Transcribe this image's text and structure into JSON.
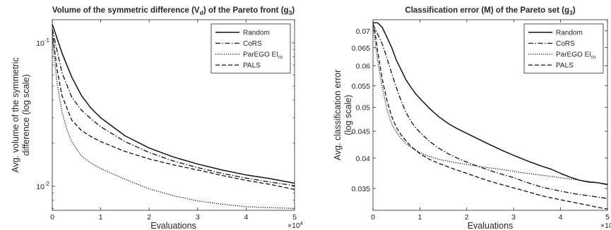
{
  "chart_data": [
    {
      "type": "line",
      "title": {
        "main": "Volume of the symmetric difference (V",
        "sub1": "d",
        "mid": ") of the Pareto front (g",
        "sub2": "3",
        "end": ")"
      },
      "xlabel": "Evaluations",
      "x_multiplier": "×10",
      "x_multiplier_exp": "4",
      "ylabel": [
        "Avg. volume of the symmetric",
        "difference (log scale)"
      ],
      "yscale": "log",
      "xlim": [
        0,
        50000
      ],
      "ylim": [
        0.0068,
        0.145
      ],
      "xticks": [
        0,
        10000,
        20000,
        30000,
        40000,
        50000
      ],
      "xtick_labels": [
        "0",
        "1",
        "2",
        "3",
        "4",
        "5"
      ],
      "yticks": [
        0.01,
        0.1
      ],
      "ytick_labels": [
        {
          "base": "10",
          "exp": "-2"
        },
        {
          "base": "10",
          "exp": "-1"
        }
      ],
      "legend_position": "top-right",
      "series": [
        {
          "name": "Random",
          "style": "solid",
          "x": [
            0,
            2000,
            4000,
            6000,
            8000,
            10000,
            15000,
            20000,
            25000,
            30000,
            35000,
            40000,
            45000,
            50000
          ],
          "y": [
            0.135,
            0.085,
            0.058,
            0.043,
            0.035,
            0.03,
            0.0225,
            0.0185,
            0.016,
            0.0143,
            0.013,
            0.012,
            0.0113,
            0.0105
          ]
        },
        {
          "name": "CoRS",
          "style": "dashdot",
          "x": [
            0,
            2000,
            4000,
            6000,
            8000,
            10000,
            15000,
            20000,
            25000,
            30000,
            35000,
            40000,
            45000,
            50000
          ],
          "y": [
            0.125,
            0.062,
            0.042,
            0.034,
            0.0295,
            0.026,
            0.0205,
            0.0172,
            0.015,
            0.0135,
            0.0123,
            0.0114,
            0.0107,
            0.0101
          ]
        },
        {
          "name": "ParEGO EI",
          "name_sub": "m",
          "style": "dotted",
          "x": [
            0,
            1000,
            2000,
            3000,
            4000,
            6000,
            8000,
            10000,
            15000,
            20000,
            25000,
            30000,
            35000,
            40000,
            45000,
            50000
          ],
          "y": [
            0.11,
            0.052,
            0.033,
            0.025,
            0.0205,
            0.0163,
            0.0145,
            0.0133,
            0.0112,
            0.0096,
            0.0086,
            0.0079,
            0.0075,
            0.0072,
            0.0071,
            0.007
          ]
        },
        {
          "name": "PALS",
          "style": "dashed",
          "x": [
            0,
            1000,
            2000,
            4000,
            6000,
            8000,
            10000,
            15000,
            20000,
            25000,
            30000,
            35000,
            40000,
            45000,
            50000
          ],
          "y": [
            0.12,
            0.065,
            0.043,
            0.029,
            0.0245,
            0.0222,
            0.0205,
            0.0175,
            0.0155,
            0.0141,
            0.013,
            0.0119,
            0.011,
            0.0103,
            0.0095
          ]
        }
      ]
    },
    {
      "type": "line",
      "title": {
        "main": "Classification error (M) of the Pareto set (g",
        "sub1": "3",
        "mid": ")",
        "sub2": "",
        "end": ""
      },
      "xlabel": "Evaluations",
      "x_multiplier": "×10",
      "x_multiplier_exp": "4",
      "ylabel": [
        "Avg. classification error",
        "(log scale)"
      ],
      "yscale": "log",
      "xlim": [
        0,
        50000
      ],
      "ylim": [
        0.0318,
        0.0735
      ],
      "xticks": [
        0,
        10000,
        20000,
        30000,
        40000,
        50000
      ],
      "xtick_labels": [
        "0",
        "1",
        "2",
        "3",
        "4",
        "5"
      ],
      "yticks": [
        0.035,
        0.04,
        0.045,
        0.05,
        0.055,
        0.06,
        0.065,
        0.07
      ],
      "ytick_labels": [
        "0.035",
        "0.04",
        "0.045",
        "0.05",
        "0.055",
        "0.06",
        "0.065",
        "0.07"
      ],
      "legend_position": "top-right",
      "series": [
        {
          "name": "Random",
          "style": "solid",
          "x": [
            0,
            1000,
            2000,
            3000,
            4000,
            5000,
            6000,
            7000,
            8000,
            9000,
            10000,
            12000,
            14000,
            16000,
            18000,
            20000,
            22000,
            25000,
            28000,
            30000,
            33000,
            36000,
            38000,
            40000,
            42000,
            44000,
            46000,
            48000,
            50000
          ],
          "y": [
            0.0725,
            0.0725,
            0.071,
            0.068,
            0.065,
            0.0615,
            0.059,
            0.0565,
            0.0548,
            0.0532,
            0.052,
            0.0498,
            0.048,
            0.0466,
            0.0455,
            0.0446,
            0.0437,
            0.0424,
            0.0412,
            0.0405,
            0.0395,
            0.0386,
            0.0381,
            0.0374,
            0.0368,
            0.0363,
            0.036,
            0.0359,
            0.0356
          ]
        },
        {
          "name": "CoRS",
          "style": "dashdot",
          "x": [
            0,
            1000,
            2000,
            3000,
            4000,
            5000,
            6000,
            7000,
            8000,
            9000,
            10000,
            12000,
            14000,
            16000,
            18000,
            20000,
            23000,
            26000,
            30000,
            33000,
            36000,
            40000,
            43000,
            46000,
            50000
          ],
          "y": [
            0.072,
            0.069,
            0.066,
            0.062,
            0.058,
            0.0545,
            0.0515,
            0.049,
            0.0472,
            0.0458,
            0.0448,
            0.0431,
            0.0418,
            0.0408,
            0.04,
            0.0393,
            0.0384,
            0.0376,
            0.0367,
            0.0359,
            0.0352,
            0.0346,
            0.0342,
            0.0339,
            0.0335
          ]
        },
        {
          "name": "ParEGO EI",
          "name_sub": "m",
          "style": "dotted",
          "x": [
            0,
            500,
            1000,
            2000,
            3000,
            4000,
            5000,
            6000,
            7000,
            8000,
            9000,
            10000,
            12000,
            14000,
            17000,
            20000,
            24000,
            28000,
            32000,
            36000,
            40000,
            45000,
            50000
          ],
          "y": [
            0.072,
            0.0665,
            0.0615,
            0.0545,
            0.0495,
            0.0465,
            0.0448,
            0.0436,
            0.0427,
            0.042,
            0.0415,
            0.041,
            0.0403,
            0.0398,
            0.0393,
            0.0389,
            0.0384,
            0.038,
            0.0375,
            0.0371,
            0.0367,
            0.0362,
            0.0357
          ]
        },
        {
          "name": "PALS",
          "style": "dashed",
          "x": [
            0,
            500,
            1000,
            2000,
            3000,
            4000,
            5000,
            6000,
            7000,
            8000,
            10000,
            12000,
            14000,
            17000,
            20000,
            23000,
            26000,
            30000,
            33000,
            36000,
            40000,
            43000,
            46000,
            48000,
            50000
          ],
          "y": [
            0.0725,
            0.069,
            0.064,
            0.0565,
            0.0515,
            0.048,
            0.0458,
            0.0443,
            0.0432,
            0.0422,
            0.0408,
            0.0398,
            0.0391,
            0.0382,
            0.0374,
            0.0366,
            0.0359,
            0.0351,
            0.0345,
            0.0339,
            0.0333,
            0.0329,
            0.0325,
            0.0322,
            0.032
          ]
        }
      ]
    }
  ]
}
